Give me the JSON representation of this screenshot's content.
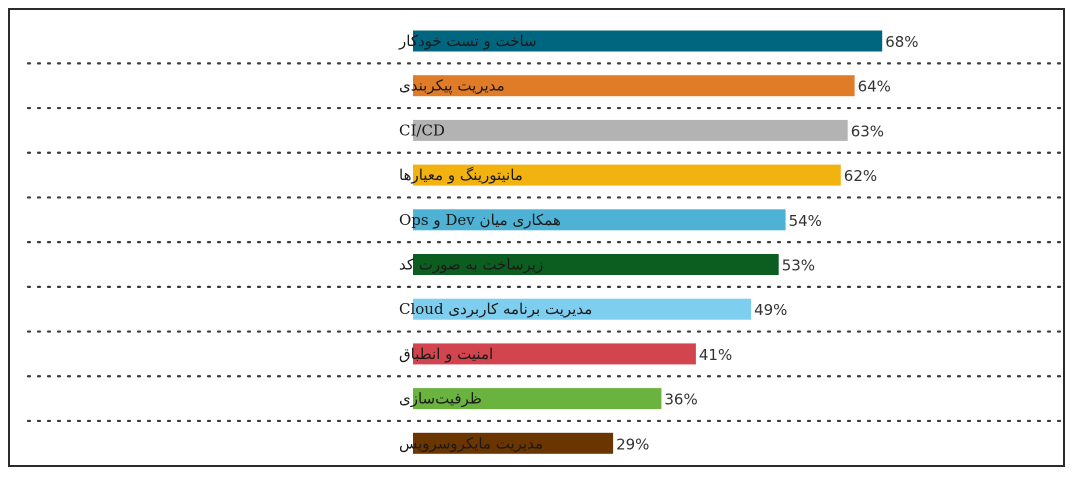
{
  "chart_data": {
    "type": "bar",
    "orientation": "horizontal",
    "title": "",
    "xlabel": "",
    "ylabel": "",
    "xlim": [
      0,
      100
    ],
    "grid": false,
    "legend": "none",
    "value_suffix": "%",
    "separators": "dotted",
    "categories": [
      "ساخت و تست خودکار",
      "مدیریت پیکربندی",
      "CI/CD",
      "مانیتورینگ و معیارها",
      "همکاری میان Dev و Ops",
      "زیرساخت به صورت کد",
      "مدیریت برنامه کاربردی Cloud",
      "امنیت و انطباق",
      "ظرفیت‌سازی",
      "مدیریت مایکروسرویس"
    ],
    "values": [
      68,
      64,
      63,
      62,
      54,
      53,
      49,
      41,
      36,
      29
    ],
    "colors": [
      "#006680",
      "#E07B28",
      "#B3B3B3",
      "#F2B20F",
      "#4DB2D3",
      "#0B5E1F",
      "#7ECEF0",
      "#D2454E",
      "#6BB33F",
      "#6B3500"
    ]
  }
}
